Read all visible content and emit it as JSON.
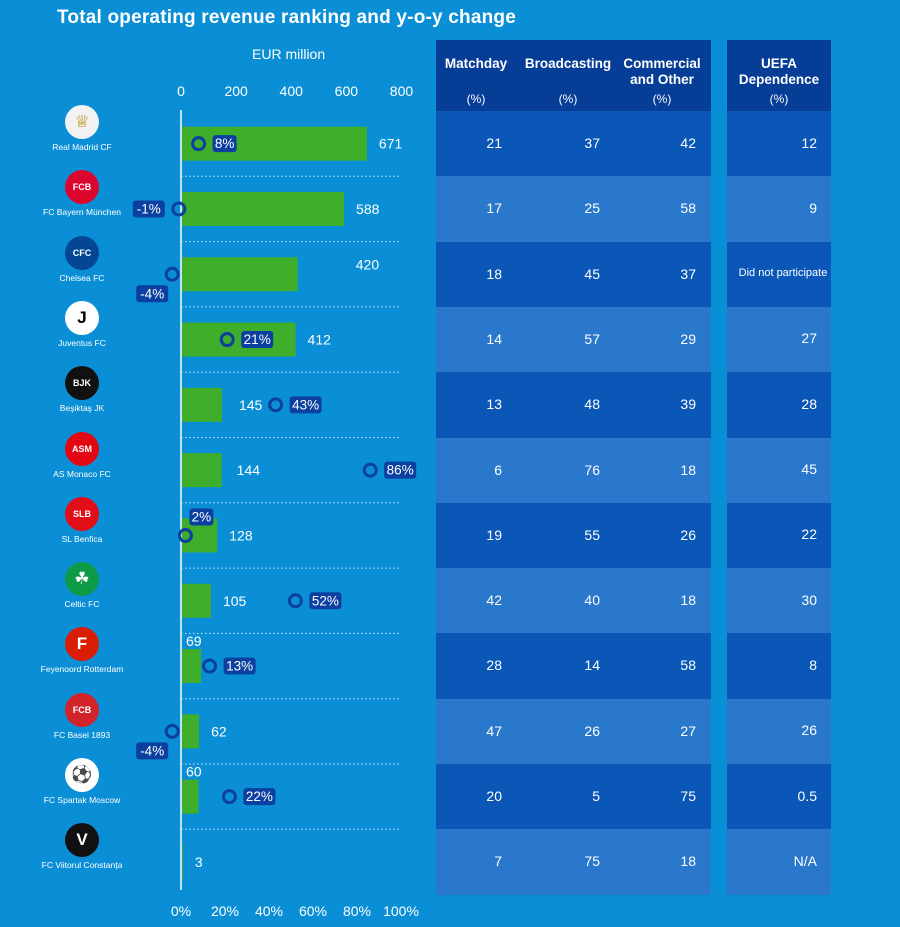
{
  "title": "Total operating revenue ranking and y-o-y change",
  "unit_label": "EUR million",
  "colors": {
    "background": "#0a8fd6",
    "bar": "#3fae2a",
    "marker": "#0b3fa0",
    "table_dark": "#0a57b7",
    "table_light": "#2a78cc",
    "header": "#063d97"
  },
  "headers": {
    "matchday": "Matchday",
    "broadcasting": "Broadcasting",
    "commercial": "Commercial and Other",
    "uefa": "UEFA Dependence",
    "pct": "(%)"
  },
  "clubs": [
    {
      "name": "Real Madrid CF",
      "logo": "real-madrid-crest",
      "revenue": 671,
      "yoy": "8%",
      "matchday": "21",
      "broadcasting": "37",
      "commercial": "42",
      "uefa": "12"
    },
    {
      "name": "FC Bayern München",
      "logo": "bayern-crest",
      "revenue": 588,
      "yoy": "-1%",
      "matchday": "17",
      "broadcasting": "25",
      "commercial": "58",
      "uefa": "9"
    },
    {
      "name": "Chelsea FC",
      "logo": "chelsea-crest",
      "revenue": 420,
      "yoy": "-4%",
      "matchday": "18",
      "broadcasting": "45",
      "commercial": "37",
      "uefa": "Did not participate"
    },
    {
      "name": "Juventus FC",
      "logo": "juventus-crest",
      "revenue": 412,
      "yoy": "21%",
      "matchday": "14",
      "broadcasting": "57",
      "commercial": "29",
      "uefa": "27"
    },
    {
      "name": "Beşiktaş JK",
      "logo": "besiktas-crest",
      "revenue": 145,
      "yoy": "43%",
      "matchday": "13",
      "broadcasting": "48",
      "commercial": "39",
      "uefa": "28"
    },
    {
      "name": "AS Monaco FC",
      "logo": "monaco-crest",
      "revenue": 144,
      "yoy": "86%",
      "matchday": "6",
      "broadcasting": "76",
      "commercial": "18",
      "uefa": "45"
    },
    {
      "name": "SL Benfica",
      "logo": "benfica-crest",
      "revenue": 128,
      "yoy": "2%",
      "matchday": "19",
      "broadcasting": "55",
      "commercial": "26",
      "uefa": "22"
    },
    {
      "name": "Celtic FC",
      "logo": "celtic-crest",
      "revenue": 105,
      "yoy": "52%",
      "matchday": "42",
      "broadcasting": "40",
      "commercial": "18",
      "uefa": "30"
    },
    {
      "name": "Feyenoord Rotterdam",
      "logo": "feyenoord-crest",
      "revenue": 69,
      "yoy": "13%",
      "matchday": "28",
      "broadcasting": "14",
      "commercial": "58",
      "uefa": "8"
    },
    {
      "name": "FC Basel 1893",
      "logo": "basel-crest",
      "revenue": 62,
      "yoy": "-4%",
      "matchday": "47",
      "broadcasting": "26",
      "commercial": "27",
      "uefa": "26"
    },
    {
      "name": "FC Spartak Moscow",
      "logo": "spartak-crest",
      "revenue": 60,
      "yoy": "22%",
      "matchday": "20",
      "broadcasting": "5",
      "commercial": "75",
      "uefa": "0.5"
    },
    {
      "name": "FC Viitorul Constanța",
      "logo": "viitorul-crest",
      "revenue": 3,
      "yoy": "",
      "matchday": "7",
      "broadcasting": "75",
      "commercial": "18",
      "uefa": "N/A"
    }
  ],
  "chart_data": {
    "type": "bar",
    "orientation": "horizontal",
    "title": "Total operating revenue ranking and y-o-y change",
    "categories": [
      "Real Madrid CF",
      "FC Bayern München",
      "Chelsea FC",
      "Juventus FC",
      "Beşiktaş JK",
      "AS Monaco FC",
      "SL Benfica",
      "Celtic FC",
      "Feyenoord Rotterdam",
      "FC Basel 1893",
      "FC Spartak Moscow",
      "FC Viitorul Constanța"
    ],
    "series": [
      {
        "name": "EUR million",
        "values": [
          671,
          588,
          420,
          412,
          145,
          144,
          128,
          105,
          69,
          62,
          60,
          3
        ]
      },
      {
        "name": "",
        "values": [
          8,
          -1,
          -4,
          21,
          43,
          86,
          2,
          52,
          13,
          -4,
          22,
          null
        ]
      }
    ],
    "top_axis": {
      "label": "EUR million",
      "ticks": [
        "0",
        "200",
        "400",
        "600",
        "800"
      ],
      "range": [
        0,
        800
      ]
    },
    "bottom_axis": {
      "ticks": [
        "0%",
        "20%",
        "40%",
        "60%",
        "80%",
        "100%"
      ],
      "range": [
        0,
        100
      ]
    },
    "grid": "dotted horizontal separators"
  }
}
